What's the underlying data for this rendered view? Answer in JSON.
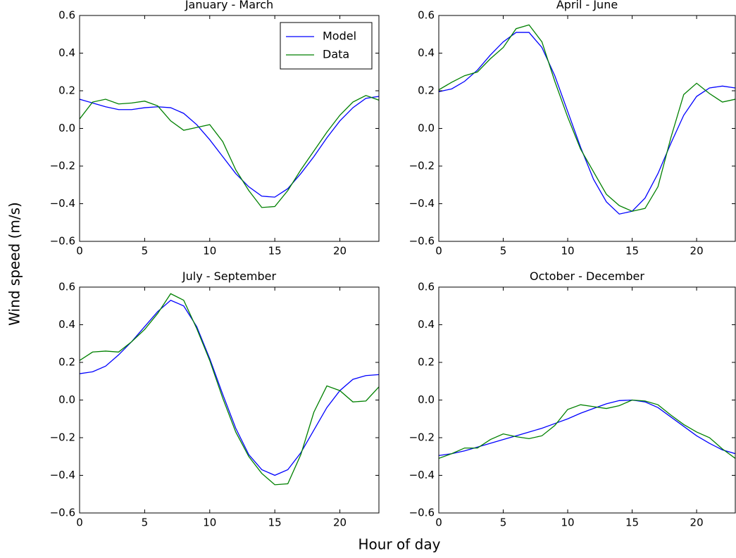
{
  "ylabel": "Wind speed (m/s)",
  "xlabel": "Hour of day",
  "chart_data": [
    {
      "type": "line",
      "title": "January - March",
      "x": [
        0,
        1,
        2,
        3,
        4,
        5,
        6,
        7,
        8,
        9,
        10,
        11,
        12,
        13,
        14,
        15,
        16,
        17,
        18,
        19,
        20,
        21,
        22,
        23
      ],
      "xlim": [
        0,
        23
      ],
      "xticks": [
        0,
        5,
        10,
        15,
        20
      ],
      "ylim": [
        -0.6,
        0.6
      ],
      "yticks": [
        {
          "value": -0.6,
          "label": "−0.6"
        },
        {
          "value": -0.4,
          "label": "−0.4"
        },
        {
          "value": -0.2,
          "label": "−0.2"
        },
        {
          "value": 0,
          "label": "0.0"
        },
        0.2,
        0.4,
        0.6
      ],
      "legend": "upper right",
      "series": [
        {
          "name": "Model",
          "color": "#0000ff",
          "values": [
            0.155,
            0.135,
            0.115,
            0.1,
            0.1,
            0.11,
            0.115,
            0.11,
            0.08,
            0.02,
            -0.06,
            -0.15,
            -0.24,
            -0.31,
            -0.36,
            -0.365,
            -0.32,
            -0.24,
            -0.15,
            -0.05,
            0.04,
            0.11,
            0.16,
            0.17
          ]
        },
        {
          "name": "Data",
          "color": "#008000",
          "values": [
            0.05,
            0.14,
            0.155,
            0.13,
            0.135,
            0.145,
            0.12,
            0.04,
            -0.01,
            0.005,
            0.02,
            -0.07,
            -0.22,
            -0.33,
            -0.42,
            -0.415,
            -0.33,
            -0.22,
            -0.12,
            -0.02,
            0.07,
            0.14,
            0.175,
            0.15
          ]
        }
      ]
    },
    {
      "type": "line",
      "title": "April - June",
      "x": [
        0,
        1,
        2,
        3,
        4,
        5,
        6,
        7,
        8,
        9,
        10,
        11,
        12,
        13,
        14,
        15,
        16,
        17,
        18,
        19,
        20,
        21,
        22,
        23
      ],
      "xlim": [
        0,
        23
      ],
      "xticks": [
        0,
        5,
        10,
        15,
        20
      ],
      "ylim": [
        -0.6,
        0.6
      ],
      "yticks": [
        {
          "value": -0.6,
          "label": "−0.6"
        },
        {
          "value": -0.4,
          "label": "−0.4"
        },
        {
          "value": -0.2,
          "label": "−0.2"
        },
        {
          "value": 0,
          "label": "0.0"
        },
        0.2,
        0.4,
        0.6
      ],
      "series": [
        {
          "color": "#0000ff",
          "values": [
            0.195,
            0.21,
            0.25,
            0.31,
            0.39,
            0.46,
            0.51,
            0.51,
            0.43,
            0.28,
            0.09,
            -0.1,
            -0.27,
            -0.39,
            -0.455,
            -0.44,
            -0.37,
            -0.24,
            -0.08,
            0.07,
            0.17,
            0.215,
            0.225,
            0.215
          ]
        },
        {
          "color": "#008000",
          "values": [
            0.205,
            0.245,
            0.28,
            0.3,
            0.37,
            0.43,
            0.53,
            0.55,
            0.46,
            0.25,
            0.06,
            -0.11,
            -0.23,
            -0.35,
            -0.41,
            -0.44,
            -0.425,
            -0.31,
            -0.05,
            0.18,
            0.24,
            0.185,
            0.14,
            0.155
          ]
        }
      ]
    },
    {
      "type": "line",
      "title": "July - September",
      "x": [
        0,
        1,
        2,
        3,
        4,
        5,
        6,
        7,
        8,
        9,
        10,
        11,
        12,
        13,
        14,
        15,
        16,
        17,
        18,
        19,
        20,
        21,
        22,
        23
      ],
      "xlim": [
        0,
        23
      ],
      "xticks": [
        0,
        5,
        10,
        15,
        20
      ],
      "ylim": [
        -0.6,
        0.6
      ],
      "yticks": [
        {
          "value": -0.6,
          "label": "−0.6"
        },
        {
          "value": -0.4,
          "label": "−0.4"
        },
        {
          "value": -0.2,
          "label": "−0.2"
        },
        {
          "value": 0,
          "label": "0.0"
        },
        0.2,
        0.4,
        0.6
      ],
      "series": [
        {
          "color": "#0000ff",
          "values": [
            0.14,
            0.15,
            0.18,
            0.24,
            0.31,
            0.39,
            0.47,
            0.53,
            0.5,
            0.39,
            0.22,
            0.03,
            -0.15,
            -0.29,
            -0.37,
            -0.4,
            -0.37,
            -0.28,
            -0.16,
            -0.04,
            0.05,
            0.11,
            0.13,
            0.135
          ]
        },
        {
          "color": "#008000",
          "values": [
            0.21,
            0.255,
            0.26,
            0.255,
            0.31,
            0.375,
            0.46,
            0.565,
            0.53,
            0.38,
            0.21,
            0.01,
            -0.17,
            -0.3,
            -0.39,
            -0.45,
            -0.445,
            -0.29,
            -0.065,
            0.075,
            0.05,
            -0.01,
            -0.005,
            0.07
          ]
        }
      ]
    },
    {
      "type": "line",
      "title": "October - December",
      "x": [
        0,
        1,
        2,
        3,
        4,
        5,
        6,
        7,
        8,
        9,
        10,
        11,
        12,
        13,
        14,
        15,
        16,
        17,
        18,
        19,
        20,
        21,
        22,
        23
      ],
      "xlim": [
        0,
        23
      ],
      "xticks": [
        0,
        5,
        10,
        15,
        20
      ],
      "ylim": [
        -0.6,
        0.6
      ],
      "yticks": [
        {
          "value": -0.6,
          "label": "−0.6"
        },
        {
          "value": -0.4,
          "label": "−0.4"
        },
        {
          "value": -0.2,
          "label": "−0.2"
        },
        {
          "value": 0,
          "label": "0.0"
        },
        0.2,
        0.4,
        0.6
      ],
      "series": [
        {
          "color": "#0000ff",
          "values": [
            -0.295,
            -0.285,
            -0.27,
            -0.25,
            -0.23,
            -0.21,
            -0.19,
            -0.17,
            -0.15,
            -0.125,
            -0.1,
            -0.07,
            -0.045,
            -0.02,
            -0.003,
            0,
            -0.01,
            -0.04,
            -0.09,
            -0.14,
            -0.19,
            -0.23,
            -0.265,
            -0.285
          ]
        },
        {
          "color": "#008000",
          "values": [
            -0.31,
            -0.285,
            -0.255,
            -0.255,
            -0.21,
            -0.18,
            -0.195,
            -0.205,
            -0.19,
            -0.135,
            -0.05,
            -0.025,
            -0.035,
            -0.045,
            -0.03,
            0,
            -0.005,
            -0.025,
            -0.08,
            -0.13,
            -0.17,
            -0.2,
            -0.26,
            -0.31
          ]
        }
      ]
    }
  ]
}
